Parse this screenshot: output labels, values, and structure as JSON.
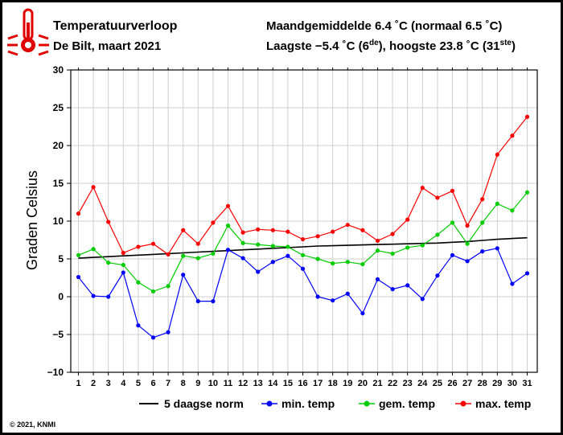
{
  "header": {
    "title": "Temperatuurverloop",
    "subtitle": "De Bilt, maart 2021",
    "line1": "Maandgemiddelde 6.4 ˚C (normaal 6.5 ˚C)",
    "line2_pre": "Laagste −5.4 ˚C (6",
    "line2_sup1": "de",
    "line2_mid": "), hoogste 23.8 ˚C (31",
    "line2_sup2": "ste",
    "line2_post": ")"
  },
  "copyright": "© 2021, KNMI",
  "icon": "thermometer-icon",
  "chart_data": {
    "type": "line",
    "ylabel": "Graden Celsius",
    "xlabel": "",
    "ylim": [
      -10,
      30
    ],
    "yticks": [
      "30",
      "25",
      "20",
      "15",
      "10",
      "5",
      "0",
      "−5",
      "−10"
    ],
    "grid": true,
    "legend_position": "bottom",
    "x": [
      1,
      2,
      3,
      4,
      5,
      6,
      7,
      8,
      9,
      10,
      11,
      12,
      13,
      14,
      15,
      16,
      17,
      18,
      19,
      20,
      21,
      22,
      23,
      24,
      25,
      26,
      27,
      28,
      29,
      30,
      31
    ],
    "series": [
      {
        "name": "5 daagse norm",
        "color": "#000000",
        "markers": false,
        "values": [
          5.1,
          5.2,
          5.3,
          5.4,
          5.5,
          5.6,
          5.7,
          5.8,
          5.9,
          6.0,
          6.1,
          6.2,
          6.3,
          6.4,
          6.5,
          6.6,
          6.7,
          6.75,
          6.8,
          6.85,
          6.9,
          6.95,
          7.0,
          7.05,
          7.1,
          7.2,
          7.3,
          7.45,
          7.6,
          7.7,
          7.8
        ]
      },
      {
        "name": "min. temp",
        "color": "#0000ff",
        "markers": true,
        "values": [
          2.6,
          0.1,
          0.0,
          3.2,
          -3.8,
          -5.4,
          -4.7,
          2.9,
          -0.6,
          -0.6,
          6.2,
          5.1,
          3.3,
          4.6,
          5.4,
          3.7,
          0.0,
          -0.5,
          0.4,
          -2.2,
          2.3,
          1.0,
          1.5,
          -0.3,
          2.8,
          5.5,
          4.7,
          6.0,
          6.4,
          1.7,
          3.1
        ]
      },
      {
        "name": "gem. temp",
        "color": "#00cc00",
        "markers": true,
        "values": [
          5.5,
          6.3,
          4.5,
          4.2,
          1.9,
          0.7,
          1.4,
          5.4,
          5.1,
          5.7,
          9.4,
          7.1,
          6.9,
          6.7,
          6.6,
          5.5,
          5.0,
          4.4,
          4.6,
          4.3,
          6.1,
          5.7,
          6.5,
          6.8,
          8.2,
          9.8,
          7.0,
          9.8,
          12.3,
          11.4,
          13.8
        ]
      },
      {
        "name": "max. temp",
        "color": "#ff0000",
        "markers": true,
        "values": [
          11.0,
          14.5,
          9.9,
          5.8,
          6.6,
          7.0,
          5.6,
          8.8,
          7.0,
          9.8,
          12.0,
          8.5,
          8.9,
          8.8,
          8.6,
          7.6,
          8.0,
          8.6,
          9.5,
          8.8,
          7.4,
          8.3,
          10.2,
          14.4,
          13.1,
          14.0,
          9.4,
          12.9,
          18.8,
          21.3,
          23.8
        ]
      }
    ]
  }
}
